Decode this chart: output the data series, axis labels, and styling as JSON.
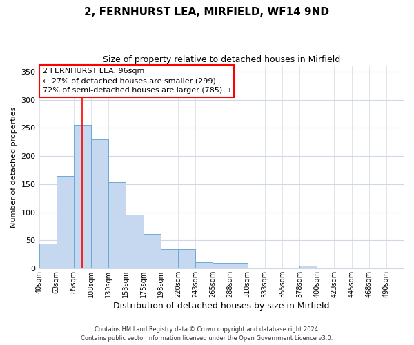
{
  "title": "2, FERNHURST LEA, MIRFIELD, WF14 9ND",
  "subtitle": "Size of property relative to detached houses in Mirfield",
  "xlabel": "Distribution of detached houses by size in Mirfield",
  "ylabel": "Number of detached properties",
  "footer_line1": "Contains HM Land Registry data © Crown copyright and database right 2024.",
  "footer_line2": "Contains public sector information licensed under the Open Government Licence v3.0.",
  "bin_labels": [
    "40sqm",
    "63sqm",
    "85sqm",
    "108sqm",
    "130sqm",
    "153sqm",
    "175sqm",
    "198sqm",
    "220sqm",
    "243sqm",
    "265sqm",
    "288sqm",
    "310sqm",
    "333sqm",
    "355sqm",
    "378sqm",
    "400sqm",
    "423sqm",
    "445sqm",
    "468sqm",
    "490sqm"
  ],
  "bar_values": [
    45,
    165,
    255,
    230,
    153,
    96,
    62,
    35,
    35,
    11,
    10,
    10,
    0,
    0,
    0,
    5,
    0,
    0,
    2,
    0,
    2
  ],
  "bar_color": "#c5d8f0",
  "bar_edge_color": "#6aaad4",
  "ylim": [
    0,
    360
  ],
  "yticks": [
    0,
    50,
    100,
    150,
    200,
    250,
    300,
    350
  ],
  "red_line_x": 2.5,
  "annotation_title": "2 FERNHURST LEA: 96sqm",
  "annotation_line1": "← 27% of detached houses are smaller (299)",
  "annotation_line2": "72% of semi-detached houses are larger (785) →",
  "bg_color": "#ffffff",
  "grid_color": "#d0d8e8"
}
